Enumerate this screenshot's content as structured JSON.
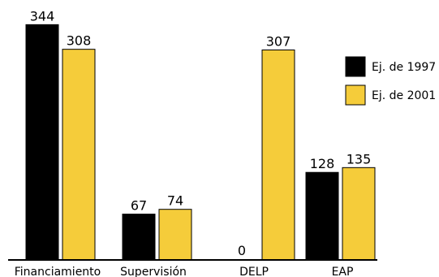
{
  "chart_data": {
    "type": "bar",
    "categories": [
      "Financiamiento",
      "Supervisión",
      "DELP",
      "EAP"
    ],
    "series": [
      {
        "name": "Ej. de 1997",
        "values": [
          344,
          67,
          0,
          128
        ],
        "labels": [
          "344",
          "67",
          "0",
          "128"
        ],
        "color": "#000000"
      },
      {
        "name": "Ej. de 2001",
        "values": [
          308,
          74,
          307,
          135
        ],
        "labels": [
          "308",
          "74",
          "307",
          "135"
        ],
        "color": "#f5cc3a"
      }
    ],
    "title": "",
    "xlabel": "",
    "ylabel": "",
    "ylim": [
      0,
      350
    ],
    "legend_position": "right",
    "grid": false
  }
}
